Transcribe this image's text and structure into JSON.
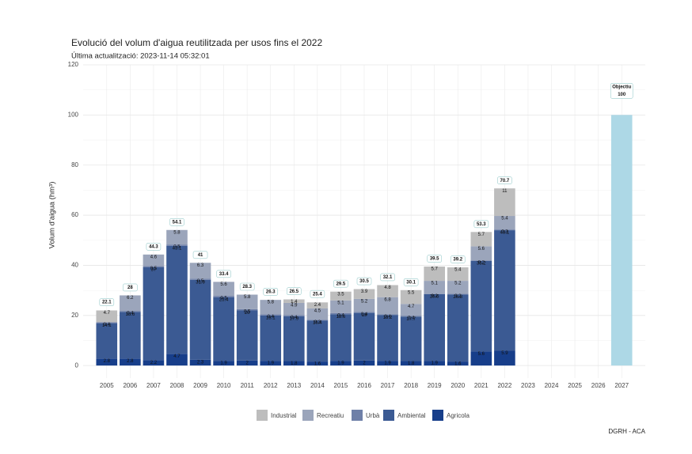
{
  "chart_data": {
    "type": "stacked_bar",
    "title": "Evolució del volum d'aigua reutilitzada per usos fins el 2022",
    "subtitle": "Última actualització: 2023-11-14 05:32:01",
    "y_label": "Volum d'aigua (hm³)",
    "caption": "DGRH - ACA",
    "categories": [
      "2005",
      "2006",
      "2007",
      "2008",
      "2009",
      "2010",
      "2011",
      "2012",
      "2013",
      "2014",
      "2015",
      "2016",
      "2017",
      "2018",
      "2019",
      "2020",
      "2021",
      "2022",
      "2023",
      "2024",
      "2025",
      "2026",
      "2027"
    ],
    "series": [
      {
        "name": "Agricola",
        "color": "#173e8a",
        "values": [
          2.8,
          2.8,
          2.2,
          4.7,
          2.3,
          1.9,
          2,
          1.9,
          1.8,
          1.6,
          1.9,
          2,
          1.9,
          1.8,
          1.9,
          1.6,
          5.6,
          5.9,
          null,
          null,
          null,
          null,
          null
        ]
      },
      {
        "name": "Ambiental",
        "color": "#3b5a93",
        "values": [
          14.1,
          18.6,
          37,
          43.1,
          31.9,
          25.4,
          20,
          18.1,
          17.9,
          16.4,
          18.6,
          19,
          18.2,
          17.7,
          26.6,
          26.8,
          36.2,
          48.1,
          null,
          null,
          null,
          null,
          null
        ]
      },
      {
        "name": "Urbà",
        "color": "#6f80a8",
        "values": [
          0.4,
          0.4,
          0.5,
          0.5,
          0.5,
          0.5,
          0.5,
          0.4,
          0.4,
          0.3,
          0.4,
          0.4,
          0.4,
          0.4,
          0.2,
          0.2,
          0.2,
          0.3,
          null,
          null,
          null,
          null,
          null
        ]
      },
      {
        "name": "Recreatiu",
        "color": "#9ba5bb",
        "values": [
          null,
          6.2,
          4.6,
          5.8,
          6.3,
          5.6,
          5.8,
          5.8,
          4.9,
          4.5,
          5.1,
          5.2,
          6.8,
          4.7,
          5.1,
          5.2,
          5.6,
          5.4,
          null,
          null,
          null,
          null,
          null
        ]
      },
      {
        "name": "Industrial",
        "color": "#bdbdbd",
        "values": [
          4.7,
          null,
          null,
          null,
          null,
          null,
          null,
          null,
          1.4,
          2.4,
          3.5,
          3.9,
          4.8,
          5.5,
          5.7,
          5.4,
          5.7,
          11,
          null,
          null,
          null,
          null,
          null
        ]
      }
    ],
    "totals": [
      22.1,
      28,
      44.3,
      54.1,
      41,
      33.4,
      28.3,
      26.3,
      26.5,
      25.4,
      29.5,
      30.5,
      32.1,
      30.1,
      39.5,
      39.2,
      53.3,
      70.7,
      null,
      null,
      null,
      null,
      null
    ],
    "objective": {
      "name": "Objectiu",
      "color": "#add8e6",
      "values": [
        null,
        null,
        null,
        null,
        null,
        null,
        null,
        null,
        null,
        null,
        null,
        null,
        null,
        null,
        null,
        null,
        null,
        null,
        null,
        null,
        null,
        null,
        100
      ]
    },
    "ylim": [
      -5,
      120
    ],
    "yticks": [
      0,
      20,
      40,
      60,
      80,
      100,
      120
    ],
    "grid": true,
    "legend": "bottom"
  }
}
